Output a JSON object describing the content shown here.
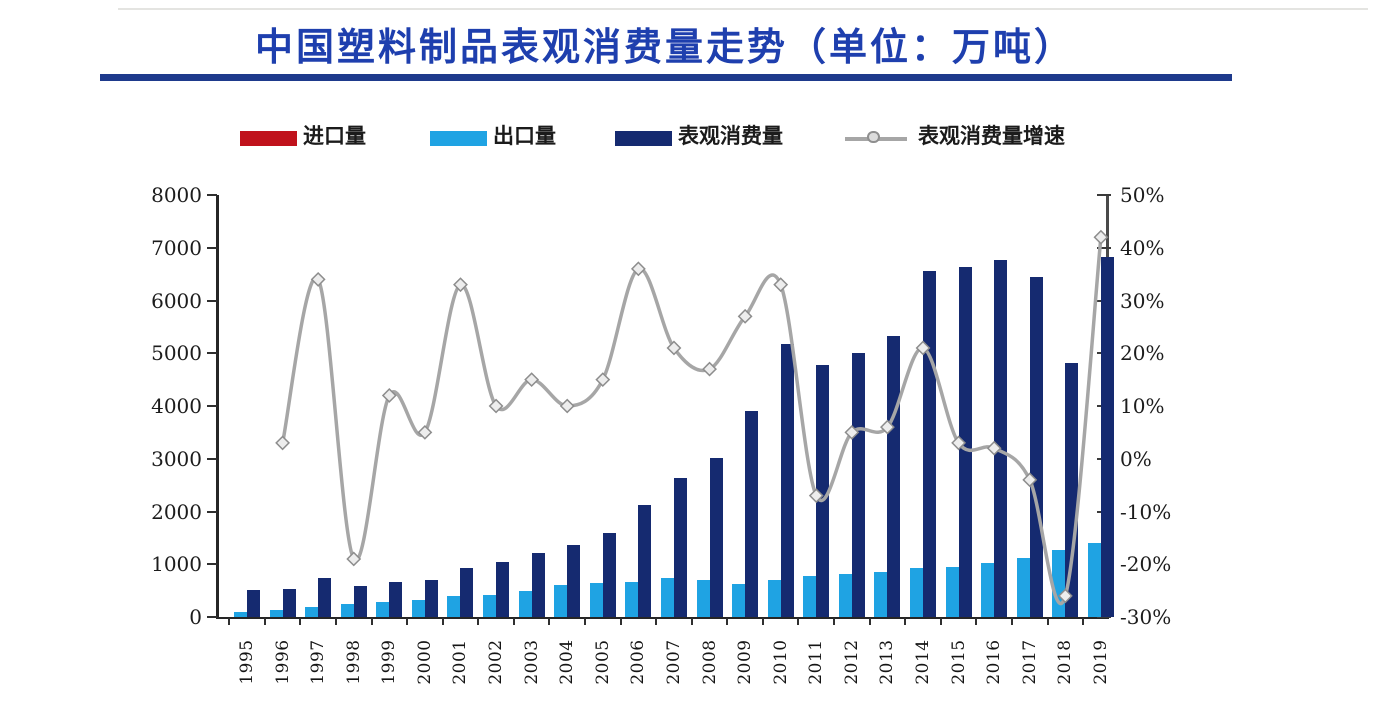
{
  "page_title": "中国塑料制品表观消费量走势（单位：万吨）",
  "chart_data": {
    "type": "combo-bar-line",
    "title": "中国塑料制品表观消费量走势（单位：万吨）",
    "unit": "万吨",
    "grid": false,
    "legend_position": "top",
    "categories": [
      "1995",
      "1996",
      "1997",
      "1998",
      "1999",
      "2000",
      "2001",
      "2002",
      "2003",
      "2004",
      "2005",
      "2006",
      "2007",
      "2008",
      "2009",
      "2010",
      "2011",
      "2012",
      "2013",
      "2014",
      "2015",
      "2016",
      "2017",
      "2018",
      "2019"
    ],
    "series": [
      {
        "name": "进口量",
        "type": "bar",
        "axis": "left",
        "color": "#c0121c",
        "values": [
          0,
          0,
          0,
          0,
          0,
          0,
          0,
          0,
          0,
          0,
          0,
          0,
          0,
          0,
          0,
          0,
          0,
          0,
          0,
          0,
          0,
          0,
          0,
          0,
          0
        ]
      },
      {
        "name": "出口量",
        "type": "bar",
        "axis": "left",
        "color": "#1fa3e3",
        "values": [
          100,
          140,
          195,
          240,
          280,
          325,
          395,
          425,
          485,
          610,
          650,
          660,
          745,
          705,
          625,
          705,
          770,
          810,
          845,
          930,
          955,
          1030,
          1120,
          1275,
          1410
        ]
      },
      {
        "name": "表观消费量",
        "type": "bar",
        "axis": "left",
        "color": "#152a70",
        "values": [
          520,
          540,
          730,
          580,
          665,
          700,
          935,
          1040,
          1205,
          1360,
          1595,
          2130,
          2630,
          3020,
          3910,
          5170,
          4770,
          5000,
          5330,
          6550,
          6640,
          6770,
          6450,
          4820,
          6830
        ]
      },
      {
        "name": "表观消费量增速",
        "type": "line",
        "axis": "right",
        "color": "#a6a6a6",
        "marker": "diamond",
        "values": [
          null,
          3,
          34,
          -19,
          12,
          5,
          33,
          10,
          15,
          10,
          15,
          36,
          21,
          17,
          27,
          33,
          -7,
          5,
          6,
          21,
          3,
          2,
          -4,
          -26,
          42
        ]
      }
    ],
    "left_axis": {
      "min": 0,
      "max": 8000,
      "step": 1000,
      "tick_labels": [
        "0",
        "1000",
        "2000",
        "3000",
        "4000",
        "5000",
        "6000",
        "7000",
        "8000"
      ]
    },
    "right_axis": {
      "min": -30,
      "max": 50,
      "step": 10,
      "format": "percent",
      "tick_labels": [
        "-30%",
        "-20%",
        "-10%",
        "0%",
        "10%",
        "20%",
        "30%",
        "40%",
        "50%"
      ]
    }
  }
}
